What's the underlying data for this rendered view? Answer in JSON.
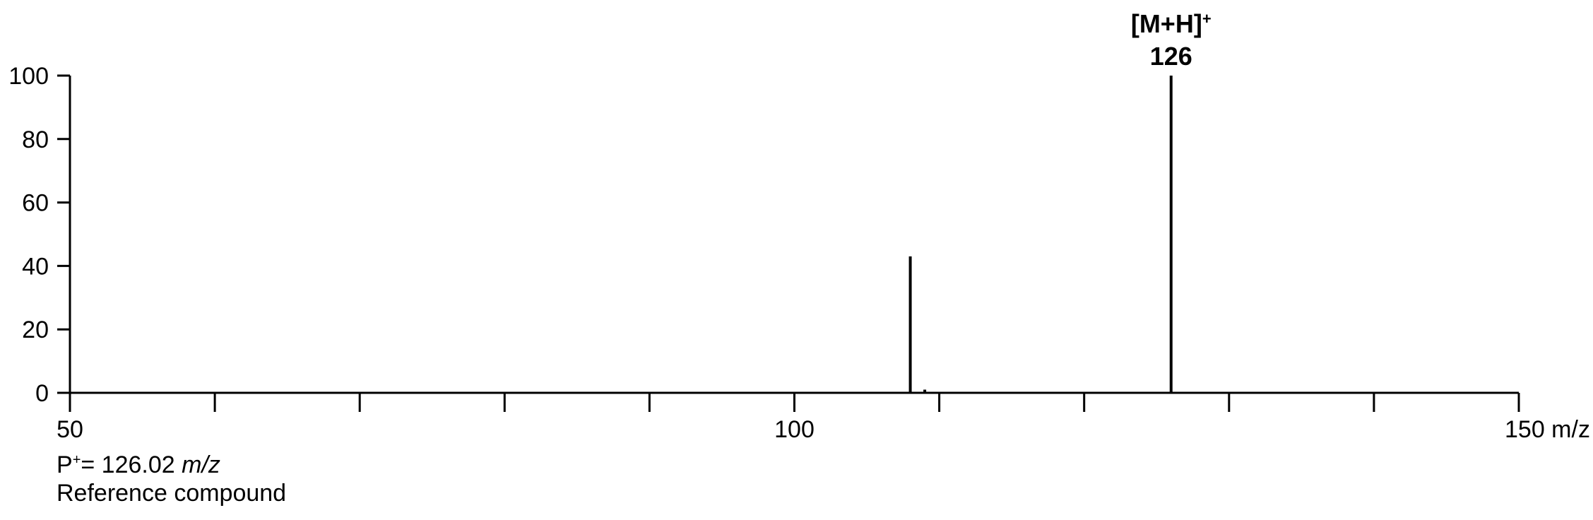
{
  "chart_data": {
    "type": "bar",
    "title": "",
    "xlabel": "",
    "ylabel": "",
    "xlim": [
      50,
      150
    ],
    "ylim": [
      0,
      100
    ],
    "x_ticks": [
      50,
      60,
      70,
      80,
      90,
      100,
      110,
      120,
      130,
      140,
      150
    ],
    "x_tick_labels": [
      "50",
      "",
      "",
      "",
      "",
      "100",
      "",
      "",
      "",
      "",
      "150 m/z"
    ],
    "y_ticks": [
      0,
      20,
      40,
      60,
      80,
      100
    ],
    "y_tick_labels": [
      "0",
      "20",
      "40",
      "60",
      "80",
      "100"
    ],
    "grid": false,
    "series": [
      {
        "x": [
          108,
          109,
          126
        ],
        "values": [
          43,
          1,
          100
        ]
      }
    ],
    "annotations": [
      {
        "x": 126,
        "label_line1": "[M+H]",
        "label_sup": "+",
        "label_line2": "126"
      }
    ]
  },
  "caption": {
    "line1_prefix": "P",
    "line1_sup": "+",
    "line1_value": "= 126.02 ",
    "line1_unit": "m/z",
    "line2": "Reference compound"
  },
  "colors": {
    "line": "#000000",
    "background": "#ffffff"
  }
}
